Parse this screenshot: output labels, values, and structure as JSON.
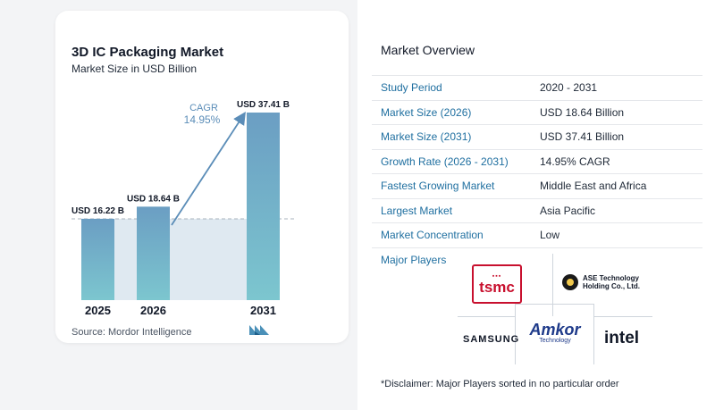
{
  "chart_data": {
    "type": "bar",
    "title": "3D IC Packaging Market",
    "subtitle": "Market Size in USD Billion",
    "categories": [
      "2025",
      "2026",
      "2031"
    ],
    "values": [
      16.22,
      18.64,
      37.41
    ],
    "value_labels": [
      "USD 16.22 B",
      "USD 18.64 B",
      "USD 37.41 B"
    ],
    "cagr_label": "CAGR",
    "cagr_value": "14.95%",
    "colors": {
      "bar_top": "#6b9ec3",
      "bar_bottom": "#7cc6cf",
      "band": "#dfe9f1",
      "arrow": "#5b8db8",
      "dashed": "#a8b3bd"
    },
    "source": "Source:  Mordor Intelligence"
  },
  "overview": {
    "title": "Market Overview",
    "rows": [
      {
        "label": "Study Period",
        "value": "2020 - 2031"
      },
      {
        "label": "Market Size (2026)",
        "value": "USD 18.64 Billion"
      },
      {
        "label": "Market Size (2031)",
        "value": "USD 37.41 Billion"
      },
      {
        "label": "Growth Rate (2026 - 2031)",
        "value": "14.95% CAGR"
      },
      {
        "label": "Fastest Growing Market",
        "value": "Middle East and Africa"
      },
      {
        "label": "Largest Market",
        "value": "Asia Pacific"
      },
      {
        "label": "Market Concentration",
        "value": "Low"
      }
    ],
    "players_label": "Major Players",
    "players": {
      "tsmc": "tsmc",
      "ase": [
        "ASE Technology",
        "Holding Co., Ltd."
      ],
      "samsung": "SAMSUNG",
      "amkor": "Amkor",
      "amkor_sub": "Technology",
      "intel": "intel"
    },
    "disclaimer": "*Disclaimer: Major Players sorted in no particular order"
  }
}
